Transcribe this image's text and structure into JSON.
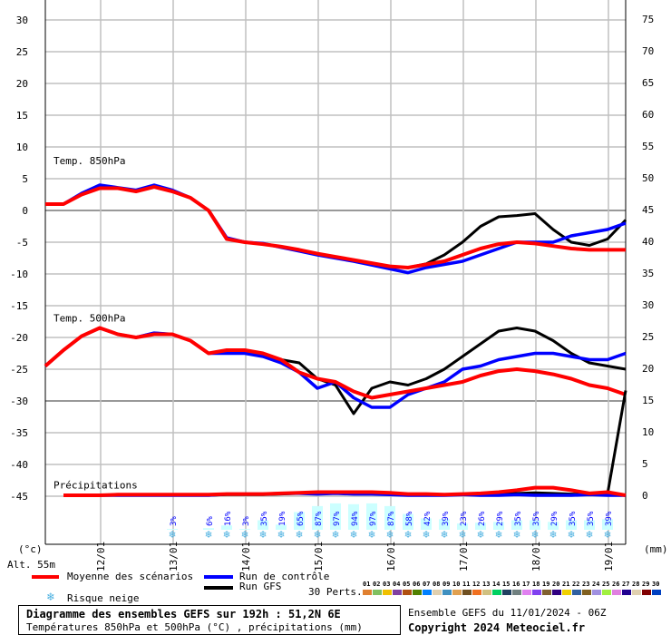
{
  "chart_data": {
    "type": "line",
    "x_labels": [
      "12/01",
      "13/01",
      "14/01",
      "15/01",
      "16/01",
      "17/01",
      "18/01",
      "19/01"
    ],
    "x_step_hours": 6,
    "left_axis": {
      "unit_label": "(°c)",
      "ticks": [
        30,
        25,
        20,
        15,
        10,
        5,
        0,
        -5,
        -10,
        -15,
        -20,
        -25,
        -30,
        -35,
        -40,
        -45
      ],
      "ylim": [
        -45,
        30
      ]
    },
    "right_axis": {
      "unit_label": "(mm)",
      "ticks": [
        75,
        70,
        65,
        60,
        55,
        50,
        45,
        40,
        35,
        30,
        25,
        20,
        15,
        10,
        5,
        0
      ],
      "ylim": [
        0,
        75
      ]
    },
    "grid": true,
    "panels": {
      "t850": {
        "label": "Temp. 850hPa",
        "mean": [
          1,
          1,
          2.5,
          3.5,
          3.5,
          3,
          3.7,
          3,
          2,
          0,
          -4.5,
          -5,
          -5.3,
          -5.7,
          -6.2,
          -6.8,
          -7.3,
          -7.8,
          -8.3,
          -8.8,
          -9,
          -8.5,
          -8,
          -7,
          -6,
          -5.3,
          -5,
          -5.2,
          -5.6,
          -6,
          -6.2,
          -6.2,
          -6.2
        ],
        "control": [
          1,
          1,
          2.7,
          4,
          3.6,
          3.2,
          4,
          3.2,
          2,
          0,
          -4.3,
          -5,
          -5.2,
          -5.8,
          -6.4,
          -7,
          -7.5,
          -8,
          -8.6,
          -9.2,
          -9.8,
          -9,
          -8.5,
          -8,
          -7,
          -6,
          -5,
          -5,
          -5,
          -4,
          -3.5,
          -3,
          -2
        ],
        "gfs": [
          1,
          1,
          2.6,
          3.8,
          3.5,
          3,
          3.8,
          3,
          2,
          0,
          -4.5,
          -5,
          -5.3,
          -5.7,
          -6.2,
          -6.8,
          -7.3,
          -7.8,
          -8.3,
          -8.8,
          -9,
          -8.4,
          -7,
          -5,
          -2.5,
          -1,
          -0.8,
          -0.5,
          -3,
          -5,
          -5.5,
          -4.5,
          -1.5
        ]
      },
      "t500": {
        "label": "Temp. 500hPa",
        "mean": [
          -24.5,
          -22,
          -19.8,
          -18.5,
          -19.5,
          -20,
          -19.5,
          -19.5,
          -20.5,
          -22.5,
          -22,
          -22,
          -22.5,
          -23.5,
          -25.5,
          -26.5,
          -27,
          -28.5,
          -29.5,
          -29,
          -28.5,
          -28,
          -27.5,
          -27,
          -26,
          -25.3,
          -25,
          -25.3,
          -25.8,
          -26.5,
          -27.5,
          -28,
          -29
        ],
        "control": [
          -24.5,
          -22,
          -19.8,
          -18.5,
          -19.5,
          -20,
          -19.3,
          -19.5,
          -20.5,
          -22.5,
          -22.5,
          -22.5,
          -23,
          -24,
          -25.5,
          -28,
          -27,
          -29.5,
          -31,
          -31,
          -29,
          -28,
          -27,
          -25,
          -24.5,
          -23.5,
          -23,
          -22.5,
          -22.5,
          -23,
          -23.5,
          -23.5,
          -22.5
        ],
        "gfs": [
          -24.5,
          -22,
          -19.8,
          -18.5,
          -19.5,
          -20,
          -19.3,
          -19.5,
          -20.5,
          -22.5,
          -22,
          -22,
          -22.5,
          -23.5,
          -24,
          -26.5,
          -27.5,
          -32,
          -28,
          -27,
          -27.5,
          -26.5,
          -25,
          -23,
          -21,
          -19,
          -18.5,
          -19,
          -20.5,
          -22.5,
          -24,
          -24.5,
          -25
        ]
      },
      "precip": {
        "label": "Précipitations",
        "mean": [
          null,
          0,
          0,
          0,
          0.1,
          0.1,
          0.1,
          0.1,
          0.1,
          0.1,
          0.2,
          0.2,
          0.2,
          0.3,
          0.4,
          0.5,
          0.5,
          0.5,
          0.5,
          0.4,
          0.2,
          0.2,
          0.1,
          0.2,
          0.3,
          0.5,
          0.8,
          1.2,
          1.2,
          0.8,
          0.3,
          0.5,
          0
        ],
        "control": [
          null,
          0,
          0,
          0,
          0,
          0,
          0,
          0,
          0,
          0,
          0.2,
          0.2,
          0.2,
          0.3,
          0.3,
          0.2,
          0.3,
          0.2,
          0.2,
          0.1,
          0,
          0,
          0,
          0.1,
          0,
          0,
          0.1,
          0,
          0,
          0,
          0.1,
          0,
          0
        ],
        "gfs": [
          null,
          0,
          0,
          0,
          0,
          0,
          0,
          0,
          0,
          0,
          0.1,
          0.1,
          0.1,
          0.2,
          0.3,
          0.5,
          0.5,
          0.4,
          0.3,
          0.2,
          0.1,
          0.1,
          0.1,
          0.2,
          0.3,
          0.2,
          0.3,
          0.4,
          0.3,
          0.2,
          0.1,
          0.2,
          16.5
        ]
      }
    },
    "snow_risk_pct": [
      null,
      null,
      null,
      null,
      null,
      null,
      null,
      3,
      null,
      6,
      16,
      3,
      35,
      19,
      65,
      87,
      97,
      94,
      97,
      87,
      58,
      42,
      39,
      23,
      26,
      29,
      35,
      35,
      29,
      35,
      35,
      39,
      null
    ]
  },
  "axis_labels": {
    "left_unit": "(°c)",
    "right_unit": "(mm)",
    "altitude": "Alt. 55m"
  },
  "legend": {
    "mean": "Moyenne des scénarios",
    "control": "Run de contrôle",
    "gfs": "Run GFS",
    "snow": "Risque neige",
    "perts": "30 Perts.",
    "pert_numbers": [
      "01",
      "02",
      "03",
      "04",
      "05",
      "06",
      "07",
      "08",
      "09",
      "10",
      "11",
      "12",
      "13",
      "14",
      "15",
      "16",
      "17",
      "18",
      "19",
      "20",
      "21",
      "22",
      "23",
      "24",
      "25",
      "26",
      "27",
      "28",
      "29",
      "30"
    ],
    "pert_colors": [
      "#e08030",
      "#80c060",
      "#f0c000",
      "#8040a0",
      "#b05010",
      "#508000",
      "#0080ff",
      "#e0d0b0",
      "#4090c0",
      "#e0a050",
      "#705020",
      "#f07020",
      "#d0c080",
      "#00d060",
      "#204060",
      "#708080",
      "#e080f0",
      "#8040f0",
      "#806030",
      "#300080",
      "#f0d000",
      "#3060a0",
      "#806020",
      "#a090e0",
      "#a0f040",
      "#e080e0",
      "#200090",
      "#e0d0b0",
      "#800000",
      "#0040c0"
    ]
  },
  "colors": {
    "mean": "#ff0000",
    "control": "#0000ff",
    "gfs": "#000000",
    "snow_bar": "#ccffff",
    "snow_text": "#0000ff",
    "grid": "#c0c0c0"
  },
  "footer": {
    "title": "Diagramme des ensembles GEFS sur 192h : 51,2N 6E",
    "subtitle": "Températures 850hPa et 500hPa (°C) , précipitations (mm)",
    "run": "Ensemble GEFS du 11/01/2024 - 06Z",
    "copyright": "Copyright 2024 Meteociel.fr"
  }
}
